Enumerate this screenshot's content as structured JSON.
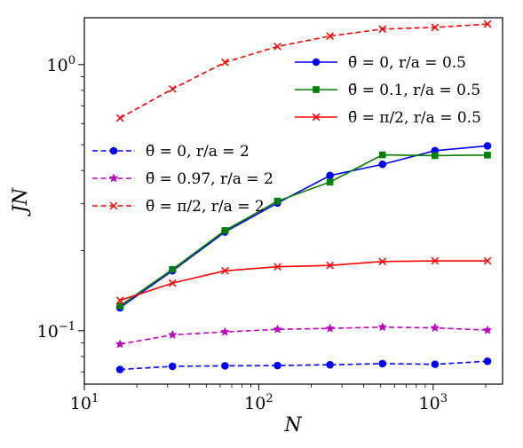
{
  "chart_data": {
    "type": "line",
    "xscale": "log",
    "yscale": "log",
    "xlim": [
      10,
      2500
    ],
    "ylim": [
      0.063,
      1.5
    ],
    "xlabel": "N",
    "ylabel": "JN",
    "grid": false,
    "x_ticks": [
      {
        "value": 10,
        "base": "10",
        "exp": "1"
      },
      {
        "value": 100,
        "base": "10",
        "exp": "2"
      },
      {
        "value": 1000,
        "base": "10",
        "exp": "3"
      }
    ],
    "y_ticks": [
      {
        "value": 0.1,
        "base": "10",
        "exp": "−1"
      },
      {
        "value": 1,
        "base": "10",
        "exp": "0"
      }
    ],
    "x": [
      16,
      32,
      64,
      128,
      256,
      512,
      1024,
      2048
    ],
    "series": [
      {
        "name": "θ̄ = 0, r/a = 0.5",
        "color": "#0000ff",
        "linestyle": "solid",
        "marker": "circle",
        "values": [
          0.122,
          0.168,
          0.235,
          0.302,
          0.383,
          0.422,
          0.475,
          0.495
        ]
      },
      {
        "name": "θ̄ = 0.1, r/a = 0.5",
        "color": "#008000",
        "linestyle": "solid",
        "marker": "square",
        "values": [
          0.124,
          0.17,
          0.238,
          0.307,
          0.362,
          0.458,
          0.455,
          0.457
        ]
      },
      {
        "name": "θ̄ = π/2, r/a = 0.5",
        "color": "#ff0000",
        "linestyle": "solid",
        "marker": "x",
        "values": [
          0.13,
          0.151,
          0.168,
          0.174,
          0.176,
          0.182,
          0.183,
          0.183
        ]
      },
      {
        "name": "θ̄ = 0, r/a = 2",
        "color": "#0000ff",
        "linestyle": "dashed",
        "marker": "circle",
        "values": [
          0.0715,
          0.0735,
          0.0738,
          0.074,
          0.0745,
          0.0752,
          0.0748,
          0.0768
        ]
      },
      {
        "name": "θ̄ = 0.97, r/a = 2",
        "color": "#bf00bf",
        "linestyle": "dashed",
        "marker": "star",
        "values": [
          0.089,
          0.0965,
          0.099,
          0.1012,
          0.102,
          0.1032,
          0.1025,
          0.1005
        ]
      },
      {
        "name": "θ̄ = π/2, r/a = 2",
        "color": "#ff0000",
        "linestyle": "dashed",
        "marker": "x",
        "values": [
          0.63,
          0.81,
          1.02,
          1.17,
          1.28,
          1.36,
          1.38,
          1.42
        ]
      }
    ],
    "legends": [
      {
        "placement": "upper-right",
        "series": [
          0,
          1,
          2
        ]
      },
      {
        "placement": "center-left",
        "series": [
          3,
          4,
          5
        ]
      }
    ]
  }
}
